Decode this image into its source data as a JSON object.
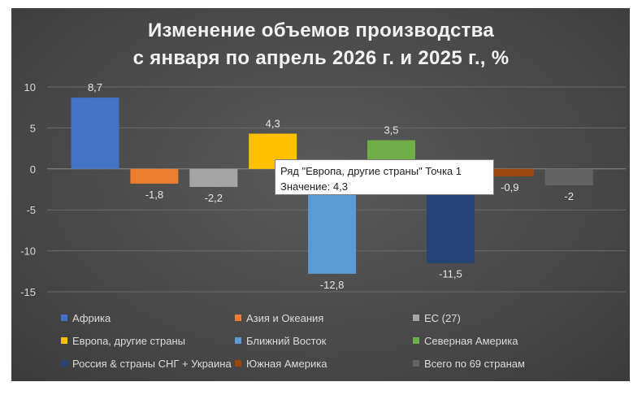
{
  "chart_data": {
    "type": "bar",
    "title": [
      "Изменение объемов производства",
      "с января по апрель 2026 г. и 2025 г., %"
    ],
    "ylim": [
      -15,
      10
    ],
    "yticks": [
      10,
      5,
      0,
      -5,
      -10,
      -15
    ],
    "grid": true,
    "legend_position": "bottom",
    "series": [
      {
        "name": "Африка",
        "value": 8.7,
        "label": "8,7",
        "color": "#4472C4"
      },
      {
        "name": "Азия и Океания",
        "value": -1.8,
        "label": "-1,8",
        "color": "#ED7D31"
      },
      {
        "name": "ЕС (27)",
        "value": -2.2,
        "label": "-2,2",
        "color": "#A5A5A5"
      },
      {
        "name": "Европа, другие страны",
        "value": 4.3,
        "label": "4,3",
        "color": "#FFC000"
      },
      {
        "name": "Ближний Восток",
        "value": -12.8,
        "label": "-12,8",
        "color": "#5B9BD5"
      },
      {
        "name": "Северная Америка",
        "value": 3.5,
        "label": "3,5",
        "color": "#70AD47"
      },
      {
        "name": "Россия & страны СНГ + Украина",
        "value": -11.5,
        "label": "-11,5",
        "color": "#264478"
      },
      {
        "name": "Южная Америка",
        "value": -0.9,
        "label": "-0,9",
        "color": "#9E480E"
      },
      {
        "name": "Всего по 69 странам",
        "value": -2,
        "label": "-2",
        "color": "#636363"
      }
    ]
  },
  "tooltip": {
    "line1": "Ряд \"Европа, другие страны\" Точка 1",
    "line2": "Значение: 4,3"
  }
}
